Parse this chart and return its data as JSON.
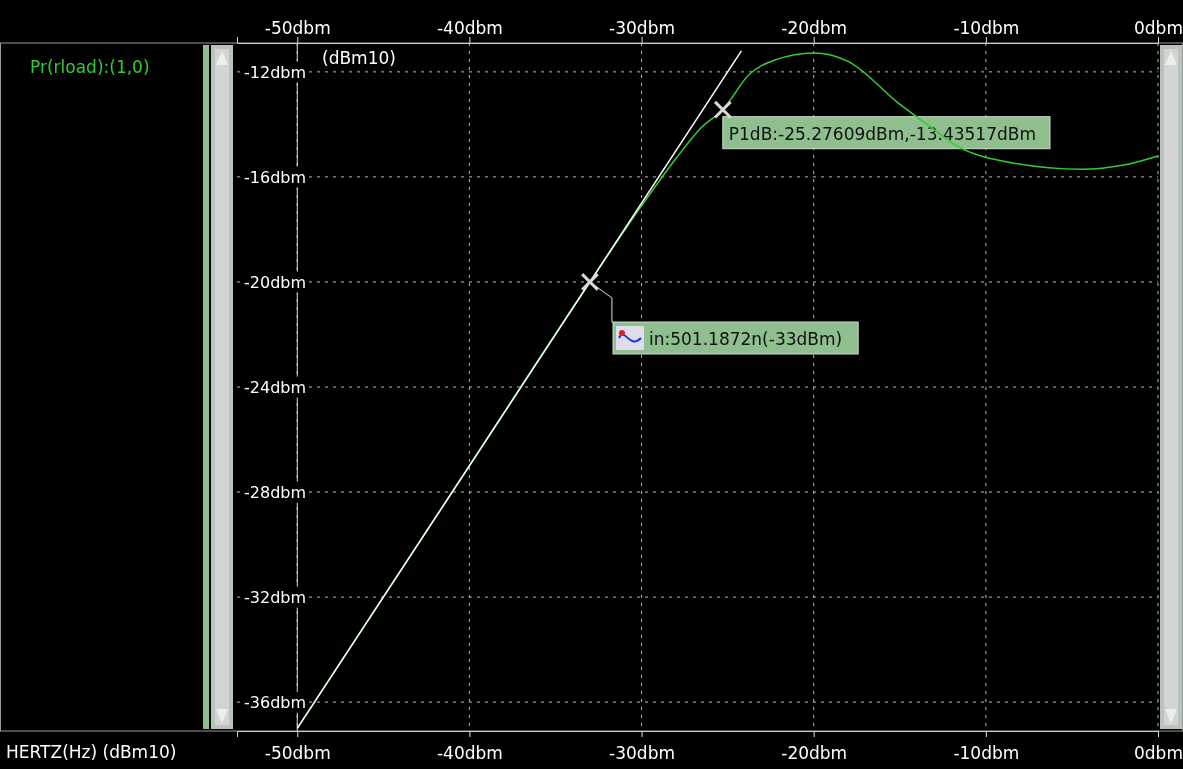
{
  "chart_data": {
    "type": "line",
    "xlabel": "HERTZ(Hz) (dBm10)",
    "ylabel": "(dBm10)",
    "xlim": [
      -53.5,
      0
    ],
    "ylim": [
      -37.1,
      -10.9
    ],
    "xticks": [
      {
        "value": -50,
        "label": "-50dbm"
      },
      {
        "value": -40,
        "label": "-40dbm"
      },
      {
        "value": -30,
        "label": "-30dbm"
      },
      {
        "value": -20,
        "label": "-20dbm"
      },
      {
        "value": -10,
        "label": "-10dbm"
      },
      {
        "value": 0,
        "label": "0dbm"
      }
    ],
    "x2lim": [
      -53.5,
      0
    ],
    "x2ticks": [
      {
        "value": -50,
        "label": "-50dbm"
      },
      {
        "value": -40,
        "label": "-40dbm"
      },
      {
        "value": -30,
        "label": "-30dbm"
      },
      {
        "value": -20,
        "label": "-20dbm"
      },
      {
        "value": -10,
        "label": "-10dbm"
      },
      {
        "value": 0,
        "label": "0dbm"
      }
    ],
    "yticks": [
      {
        "value": -36,
        "label": "-36dbm"
      },
      {
        "value": -32,
        "label": "-32dbm"
      },
      {
        "value": -28,
        "label": "-28dbm"
      },
      {
        "value": -24,
        "label": "-24dbm"
      },
      {
        "value": -20,
        "label": "-20dbm"
      },
      {
        "value": -16,
        "label": "-16dbm"
      },
      {
        "value": -12,
        "label": "-12dbm"
      }
    ],
    "grid": true,
    "legend": "left",
    "series": [
      {
        "name": "Pr(rload):(1,0)",
        "color": "#33cc33",
        "x": [
          -50,
          -40,
          -33,
          -30,
          -28,
          -26.5,
          -25.28,
          -23.75,
          -22.25,
          -20,
          -18,
          -15.1,
          -13,
          -11.9,
          -8.75,
          -4.45,
          -2,
          0
        ],
        "values": [
          -37,
          -27,
          -20,
          -17.1,
          -15.3,
          -14.1,
          -13.44,
          -12.1,
          -11.55,
          -11.28,
          -11.6,
          -13.18,
          -14.2,
          -14.73,
          -15.43,
          -15.71,
          -15.55,
          -15.2
        ]
      },
      {
        "color": "#ffffff",
        "x": [
          -50,
          -24.2
        ],
        "values": [
          -37,
          -11.2
        ]
      },
      {
        "type": "scatter",
        "marker": "cross",
        "color": "#d8d8d8",
        "x": [
          -33,
          -25.28
        ],
        "values": [
          -20,
          -13.44
        ]
      }
    ],
    "annotations": [
      "in:501.1872n(-33dBm)",
      {
        "text": "P1dB:-25.27609dBm,-13.43517dBm",
        "x": -25.28,
        "y": -13.44
      }
    ]
  }
}
